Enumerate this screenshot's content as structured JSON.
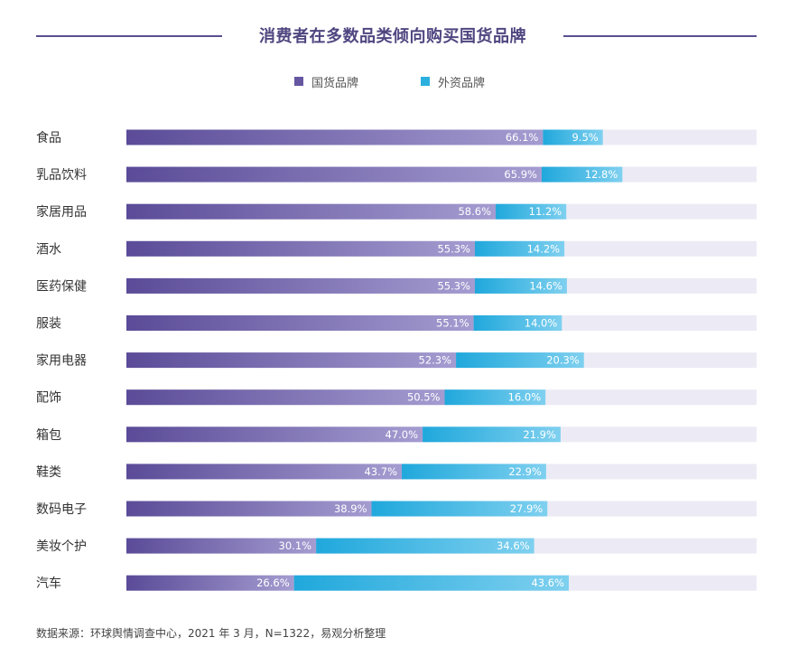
{
  "page": {
    "title": "消费者在多数品类倾向购买国货品牌",
    "source_note": "数据来源：环球舆情调查中心，2021 年 3 月，N=1322，易观分析整理"
  },
  "colors": {
    "domestic_start": "#5b4b98",
    "domestic_end": "#a49cd0",
    "foreign_start": "#20a8dc",
    "foreign_end": "#7fd0ef",
    "track": "#ecebf5",
    "title": "#4f4680"
  },
  "chart_data": {
    "type": "bar",
    "orientation": "horizontal",
    "stacked": true,
    "title": "消费者在多数品类倾向购买国货品牌",
    "legend_position": "top-center",
    "xlim": [
      0,
      100
    ],
    "categories": [
      "食品",
      "乳品饮料",
      "家居用品",
      "酒水",
      "医药保健",
      "服装",
      "家用电器",
      "配饰",
      "箱包",
      "鞋类",
      "数码电子",
      "美妆个护",
      "汽车"
    ],
    "series": [
      {
        "name": "国货品牌",
        "values": [
          66.1,
          65.9,
          58.6,
          55.3,
          55.3,
          55.1,
          52.3,
          50.5,
          47.0,
          43.7,
          38.9,
          30.1,
          26.6
        ],
        "labels": [
          "66.1%",
          "65.9%",
          "58.6%",
          "55.3%",
          "55.3%",
          "55.1%",
          "52.3%",
          "50.5%",
          "47.0%",
          "43.7%",
          "38.9%",
          "30.1%",
          "26.6%"
        ]
      },
      {
        "name": "外资品牌",
        "values": [
          9.5,
          12.8,
          11.2,
          14.2,
          14.6,
          14.0,
          20.3,
          16.0,
          21.9,
          22.9,
          27.9,
          34.6,
          43.6
        ],
        "labels": [
          "9.5%",
          "12.8%",
          "11.2%",
          "14.2%",
          "14.6%",
          "14.0%",
          "20.3%",
          "16.0%",
          "21.9%",
          "22.9%",
          "27.9%",
          "34.6%",
          "43.6%"
        ]
      }
    ]
  }
}
